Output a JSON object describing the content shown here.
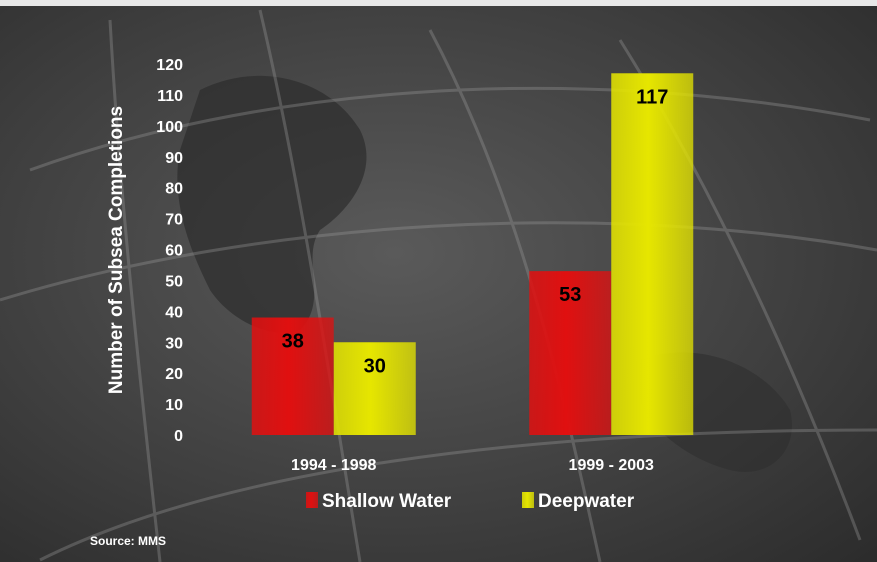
{
  "colors": {
    "background": "#3a3a3a",
    "shallow": "#e01010",
    "deep": "#e6e600",
    "text": "#ffffff"
  },
  "source": "Source: MMS",
  "chart_data": {
    "type": "bar",
    "title": "",
    "xlabel": "",
    "ylabel": "Number of Subsea Completions",
    "ylim": [
      0,
      120
    ],
    "ytick_step": 10,
    "grid": false,
    "legend_position": "bottom",
    "categories": [
      "1994 - 1998",
      "1999 - 2003"
    ],
    "series": [
      {
        "name": "Shallow Water",
        "values": [
          38,
          53
        ],
        "color": "#e01010",
        "label_color": "#000000"
      },
      {
        "name": "Deepwater",
        "values": [
          30,
          117
        ],
        "color": "#e6e600",
        "label_color": "#000000"
      }
    ]
  }
}
